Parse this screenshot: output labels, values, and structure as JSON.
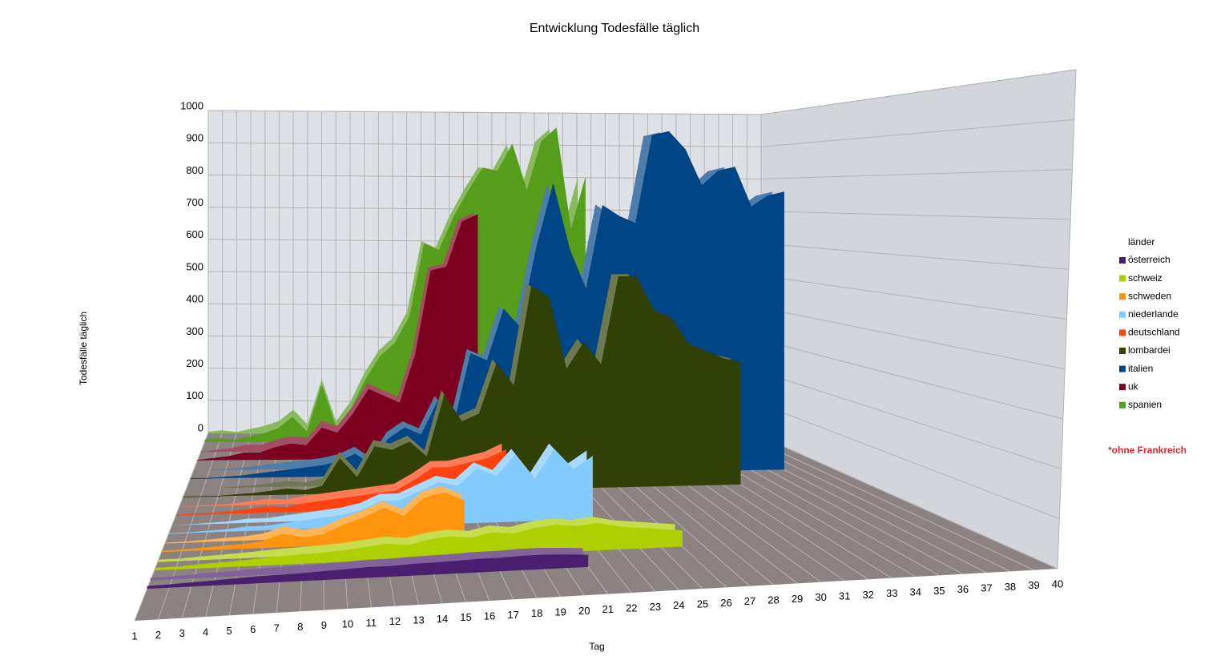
{
  "chart_data": {
    "type": "area3d",
    "title": "Entwicklung Todesfälle täglich",
    "y_label": "Todesfälle täglich",
    "x_label": "Tag",
    "legend_title": "länder",
    "note": "*ohne Frankreich",
    "x": [
      1,
      2,
      3,
      4,
      5,
      6,
      7,
      8,
      9,
      10,
      11,
      12,
      13,
      14,
      15,
      16,
      17,
      18,
      19,
      20,
      21,
      22,
      23,
      24,
      25,
      26,
      27,
      28,
      29,
      30,
      31,
      32,
      33,
      34,
      35,
      36,
      37,
      38,
      39,
      40
    ],
    "ylim": [
      0,
      1000
    ],
    "yticks": [
      0,
      100,
      200,
      300,
      400,
      500,
      600,
      700,
      800,
      900,
      1000
    ],
    "series": [
      {
        "name": "österreich",
        "color": "#4b1f6f",
        "values": [
          5,
          6,
          8,
          10,
          12,
          14,
          15,
          16,
          18,
          20,
          22,
          22,
          24,
          25,
          26,
          28,
          28,
          30,
          30,
          28,
          25,
          null,
          null,
          null,
          null,
          null,
          null,
          null,
          null,
          null,
          null,
          null,
          null,
          null,
          null,
          null,
          null,
          null,
          null,
          null
        ]
      },
      {
        "name": "schweiz",
        "color": "#aecf00",
        "values": [
          5,
          5,
          8,
          10,
          12,
          15,
          18,
          20,
          22,
          25,
          30,
          35,
          30,
          40,
          45,
          40,
          50,
          45,
          55,
          60,
          55,
          60,
          50,
          45,
          40,
          35,
          null,
          null,
          null,
          null,
          null,
          null,
          null,
          null,
          null,
          null,
          null,
          null,
          null,
          null
        ]
      },
      {
        "name": "schweden",
        "color": "#ff950e",
        "values": [
          2,
          3,
          5,
          8,
          10,
          15,
          30,
          20,
          25,
          45,
          60,
          80,
          60,
          100,
          110,
          90,
          null,
          null,
          null,
          null,
          null,
          null,
          null,
          null,
          null,
          null,
          null,
          null,
          null,
          null,
          null,
          null,
          null,
          null,
          null,
          null,
          null,
          null,
          null,
          null
        ]
      },
      {
        "name": "niederlande",
        "color": "#83caff",
        "values": [
          0,
          1,
          3,
          5,
          10,
          10,
          15,
          20,
          25,
          30,
          40,
          60,
          60,
          80,
          100,
          90,
          130,
          110,
          160,
          100,
          170,
          120,
          150,
          null,
          null,
          null,
          null,
          null,
          null,
          null,
          null,
          null,
          null,
          null,
          null,
          null,
          null,
          null,
          null,
          null
        ]
      },
      {
        "name": "deutschland",
        "color": "#ff420e",
        "values": [
          0,
          2,
          3,
          5,
          10,
          15,
          12,
          20,
          25,
          30,
          35,
          40,
          45,
          70,
          100,
          100,
          110,
          120,
          140,
          null,
          null,
          null,
          null,
          null,
          null,
          null,
          null,
          null,
          null,
          null,
          null,
          null,
          null,
          null,
          null,
          null,
          null,
          null,
          null,
          null
        ]
      },
      {
        "name": "lombardei",
        "color": "#314004",
        "values": [
          0,
          0,
          0,
          3,
          5,
          10,
          15,
          10,
          20,
          90,
          40,
          120,
          110,
          130,
          90,
          250,
          180,
          200,
          330,
          270,
          530,
          500,
          310,
          380,
          320,
          550,
          550,
          460,
          440,
          370,
          350,
          330,
          320,
          null,
          null,
          null,
          null,
          null,
          null,
          null
        ]
      },
      {
        "name": "italien",
        "color": "#004586",
        "values": [
          0,
          0,
          2,
          5,
          10,
          15,
          20,
          25,
          30,
          40,
          60,
          30,
          100,
          130,
          110,
          200,
          140,
          330,
          310,
          450,
          400,
          620,
          790,
          610,
          500,
          730,
          700,
          680,
          920,
          930,
          880,
          780,
          820,
          830,
          720,
          750,
          760,
          null,
          null,
          null
        ]
      },
      {
        "name": "uk",
        "color": "#7e0021",
        "values": [
          0,
          5,
          10,
          20,
          20,
          35,
          45,
          40,
          90,
          75,
          130,
          200,
          180,
          160,
          300,
          540,
          550,
          680,
          700,
          null,
          null,
          null,
          null,
          null,
          null,
          null,
          null,
          null,
          null,
          null,
          null,
          null,
          null,
          null,
          null,
          null,
          null,
          null,
          null,
          null
        ]
      },
      {
        "name": "spanien",
        "color": "#579d1c",
        "values": [
          5,
          10,
          5,
          15,
          25,
          40,
          75,
          30,
          170,
          40,
          100,
          190,
          260,
          300,
          380,
          600,
          580,
          680,
          760,
          830,
          820,
          900,
          760,
          910,
          950,
          640,
          800,
          null,
          null,
          null,
          null,
          null,
          null,
          null,
          null,
          null,
          null,
          null,
          null,
          null
        ]
      }
    ]
  }
}
